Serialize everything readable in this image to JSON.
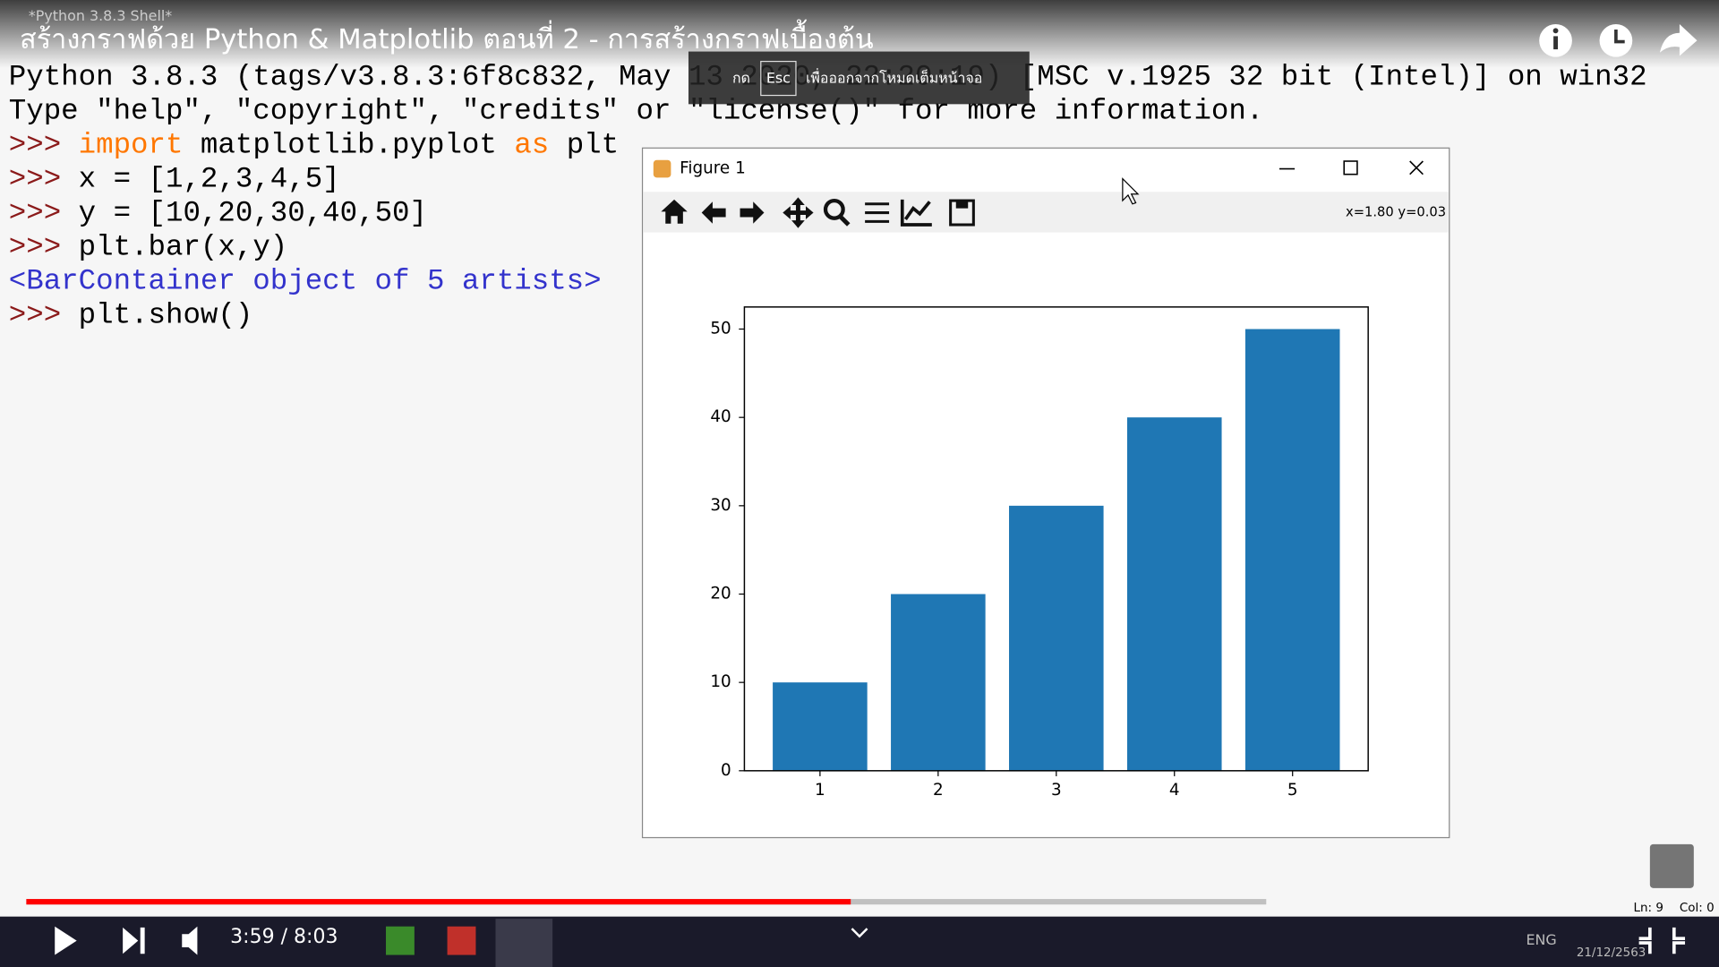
{
  "video": {
    "title": "สร้างกราฟด้วย Python & Matplotlib ตอนที่ 2 - การสร้างกราฟเบื้องต้น",
    "time": "3:59 / 8:03"
  },
  "esc_hint": {
    "prefix": "กด",
    "key": "Esc",
    "text": "เพื่อออกจากโหมดเต็มหน้าจอ"
  },
  "shell": {
    "window_title": "*Python 3.8.3 Shell*",
    "lines": [
      [
        {
          "text": "Python 3.8.3 (tags/v3.8.3:6f8c832, May 13 2020, 22:20:19) [MSC v.1925 32 bit (Intel)] on win32",
          "color": "#000000"
        }
      ],
      [
        {
          "text": "Type \"help\", \"copyright\", \"credits\" or \"license()\" for more information.",
          "color": "#000000"
        }
      ],
      [
        {
          "text": ">>> ",
          "color": "#8b1a1a"
        },
        {
          "text": "import",
          "color": "#ff7700"
        },
        {
          "text": " matplotlib.pyplot ",
          "color": "#000000"
        },
        {
          "text": "as",
          "color": "#ff7700"
        },
        {
          "text": " plt",
          "color": "#000000"
        }
      ],
      [
        {
          "text": ">>> ",
          "color": "#8b1a1a"
        },
        {
          "text": "x = [1,2,3,4,5]",
          "color": "#000000"
        }
      ],
      [
        {
          "text": ">>> ",
          "color": "#8b1a1a"
        },
        {
          "text": "y = [10,20,30,40,50]",
          "color": "#000000"
        }
      ],
      [
        {
          "text": ">>> ",
          "color": "#8b1a1a"
        },
        {
          "text": "plt.bar(x,y)",
          "color": "#000000"
        }
      ],
      [
        {
          "text": "<BarContainer object of 5 artists>",
          "color": "#3333cc"
        }
      ],
      [
        {
          "text": ">>> ",
          "color": "#8b1a1a"
        },
        {
          "text": "plt.show()",
          "color": "#000000"
        }
      ]
    ],
    "status": {
      "line": "Ln: 9",
      "col": "Col: 0"
    }
  },
  "figure": {
    "title": "Figure 1",
    "coords": "x=1.80 y=0.03"
  },
  "chart_data": {
    "type": "bar",
    "x": [
      1,
      2,
      3,
      4,
      5
    ],
    "values": [
      10,
      20,
      30,
      40,
      50
    ],
    "color": "#1f77b4",
    "xlim": [
      0.36,
      5.64
    ],
    "xticks": [
      1,
      2,
      3,
      4,
      5
    ],
    "ylim": [
      0,
      52.5
    ],
    "yticks": [
      0,
      10,
      20,
      30,
      40,
      50
    ]
  },
  "taskbar": {
    "lang": "ENG",
    "date": "21/12/2563"
  }
}
